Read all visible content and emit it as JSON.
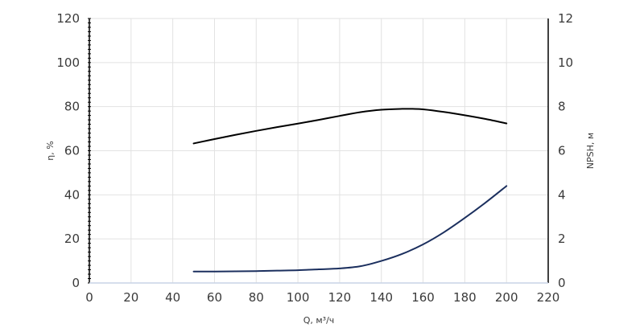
{
  "chart_data": {
    "type": "line",
    "title": "",
    "xlabel": "Q, м³/ч",
    "ylabel_left": "η, %",
    "ylabel_right": "NPSH, м",
    "xlim": [
      0,
      220
    ],
    "ylim_left": [
      0,
      120
    ],
    "ylim_right": [
      0,
      12
    ],
    "x_ticks": [
      0,
      20,
      40,
      60,
      80,
      100,
      120,
      140,
      160,
      180,
      200,
      220
    ],
    "y_left_ticks": [
      0,
      20,
      40,
      60,
      80,
      100,
      120
    ],
    "y_right_ticks": [
      0,
      2,
      4,
      6,
      8,
      10,
      12
    ],
    "grid": true,
    "colors": {
      "efficiency": "#000000",
      "npsh": "#1b2f5e",
      "grid": "#e2e2e2",
      "axis": "#000000"
    },
    "series": [
      {
        "axis": "left",
        "x": [
          50,
          60,
          70,
          80,
          90,
          100,
          110,
          120,
          130,
          140,
          150,
          155,
          160,
          170,
          180,
          190,
          200
        ],
        "y": [
          63.3,
          65.3,
          67.2,
          69.0,
          70.7,
          72.3,
          74.0,
          75.8,
          77.5,
          78.6,
          79.0,
          79.0,
          78.8,
          77.6,
          76.1,
          74.4,
          72.4
        ]
      },
      {
        "axis": "right",
        "x": [
          50,
          60,
          70,
          80,
          90,
          100,
          110,
          120,
          130,
          140,
          150,
          160,
          170,
          180,
          190,
          200
        ],
        "y": [
          0.52,
          0.52,
          0.53,
          0.54,
          0.56,
          0.58,
          0.62,
          0.66,
          0.76,
          1.0,
          1.32,
          1.75,
          2.3,
          2.95,
          3.65,
          4.4
        ]
      }
    ]
  }
}
